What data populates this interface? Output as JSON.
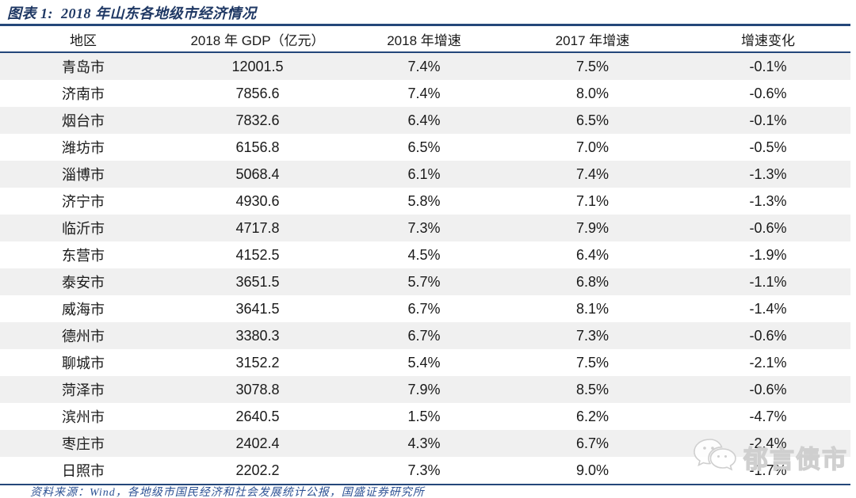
{
  "figure": {
    "label": "图表 1:",
    "title": "2018 年山东各地级市经济情况"
  },
  "table": {
    "columns": [
      "地区",
      "2018 年 GDP（亿元）",
      "2018 年增速",
      "2017 年增速",
      "增速变化"
    ],
    "rows": [
      {
        "region": "青岛市",
        "gdp_2018": "12001.5",
        "growth_2018": "7.4%",
        "growth_2017": "7.5%",
        "change": "-0.1%"
      },
      {
        "region": "济南市",
        "gdp_2018": "7856.6",
        "growth_2018": "7.4%",
        "growth_2017": "8.0%",
        "change": "-0.6%"
      },
      {
        "region": "烟台市",
        "gdp_2018": "7832.6",
        "growth_2018": "6.4%",
        "growth_2017": "6.5%",
        "change": "-0.1%"
      },
      {
        "region": "潍坊市",
        "gdp_2018": "6156.8",
        "growth_2018": "6.5%",
        "growth_2017": "7.0%",
        "change": "-0.5%"
      },
      {
        "region": "淄博市",
        "gdp_2018": "5068.4",
        "growth_2018": "6.1%",
        "growth_2017": "7.4%",
        "change": "-1.3%"
      },
      {
        "region": "济宁市",
        "gdp_2018": "4930.6",
        "growth_2018": "5.8%",
        "growth_2017": "7.1%",
        "change": "-1.3%"
      },
      {
        "region": "临沂市",
        "gdp_2018": "4717.8",
        "growth_2018": "7.3%",
        "growth_2017": "7.9%",
        "change": "-0.6%"
      },
      {
        "region": "东营市",
        "gdp_2018": "4152.5",
        "growth_2018": "4.5%",
        "growth_2017": "6.4%",
        "change": "-1.9%"
      },
      {
        "region": "泰安市",
        "gdp_2018": "3651.5",
        "growth_2018": "5.7%",
        "growth_2017": "6.8%",
        "change": "-1.1%"
      },
      {
        "region": "威海市",
        "gdp_2018": "3641.5",
        "growth_2018": "6.7%",
        "growth_2017": "8.1%",
        "change": "-1.4%"
      },
      {
        "region": "德州市",
        "gdp_2018": "3380.3",
        "growth_2018": "6.7%",
        "growth_2017": "7.3%",
        "change": "-0.6%"
      },
      {
        "region": "聊城市",
        "gdp_2018": "3152.2",
        "growth_2018": "5.4%",
        "growth_2017": "7.5%",
        "change": "-2.1%"
      },
      {
        "region": "菏泽市",
        "gdp_2018": "3078.8",
        "growth_2018": "7.9%",
        "growth_2017": "8.5%",
        "change": "-0.6%"
      },
      {
        "region": "滨州市",
        "gdp_2018": "2640.5",
        "growth_2018": "1.5%",
        "growth_2017": "6.2%",
        "change": "-4.7%"
      },
      {
        "region": "枣庄市",
        "gdp_2018": "2402.4",
        "growth_2018": "4.3%",
        "growth_2017": "6.7%",
        "change": "-2.4%"
      },
      {
        "region": "日照市",
        "gdp_2018": "2202.2",
        "growth_2018": "7.3%",
        "growth_2017": "9.0%",
        "change": "-1.7%"
      }
    ]
  },
  "footer": {
    "source": "资料来源：Wind，各地级市国民经济和社会发展统计公报，国盛证券研究所"
  },
  "watermark": {
    "text": "郁言债市",
    "icon": "wechat-icon"
  },
  "colors": {
    "accent_navy": "#24477a",
    "title_navy": "#1f3864",
    "source_blue": "#2e5395",
    "stripe_gray": "#f0f0f0",
    "body_text": "#1a1a1a",
    "watermark_gray": "#cfcfcf"
  }
}
